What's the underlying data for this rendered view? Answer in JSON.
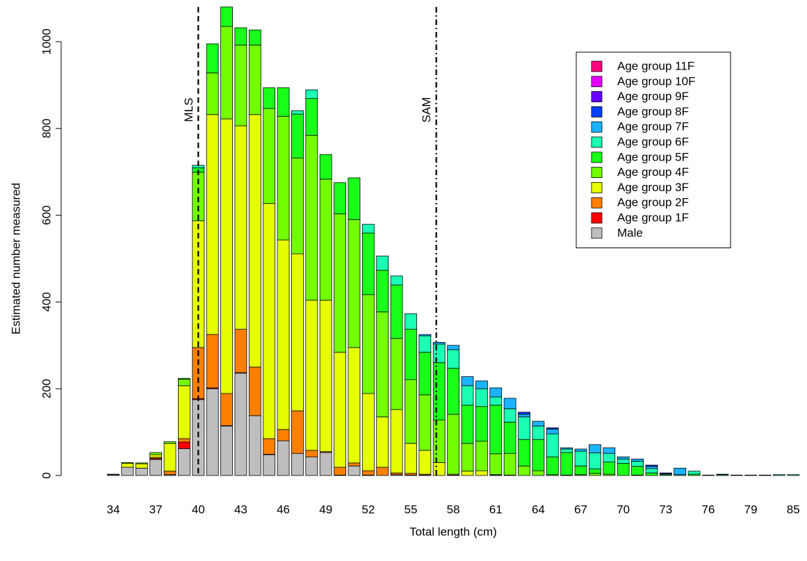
{
  "chart_data": {
    "type": "stacked_bar",
    "x_label": "Total length  (cm)",
    "y_label": "Estimated number measured",
    "categories": [
      "34",
      null,
      null,
      "37",
      null,
      null,
      "40",
      null,
      null,
      "43",
      null,
      null,
      "46",
      null,
      null,
      "49",
      null,
      null,
      "52",
      null,
      null,
      "55",
      null,
      null,
      "58",
      null,
      null,
      "61",
      null,
      null,
      "64",
      null,
      null,
      "67",
      null,
      null,
      "70",
      null,
      null,
      "73",
      null,
      null,
      "76",
      null,
      null,
      "79",
      null,
      null,
      "85"
    ],
    "ylim": [
      0,
      1080
    ],
    "yticks": [
      0,
      200,
      400,
      600,
      800,
      1000
    ],
    "grid": false,
    "legend": "topright",
    "annotations": [
      {
        "label": "MLS",
        "x": 40,
        "style": "dashed"
      },
      {
        "label": "SAM",
        "x": 56.8,
        "style": "dotdash"
      }
    ],
    "series": [
      {
        "name": "Male",
        "color": "#BEBEBE",
        "values": [
          2,
          19,
          17,
          37,
          2,
          62,
          175,
          200,
          114,
          236,
          138,
          48,
          80,
          51,
          43,
          53,
          1,
          22,
          1,
          0,
          2,
          1,
          1,
          0,
          1,
          0,
          0,
          1,
          0,
          0,
          0,
          0,
          0,
          0,
          0,
          0,
          0,
          0,
          0,
          0,
          0,
          0,
          0,
          0,
          0,
          0,
          0,
          0,
          0
        ]
      },
      {
        "name": "Age group 1F",
        "color": "#FF0000",
        "values": [
          0,
          0,
          0,
          2,
          0,
          15,
          2,
          2,
          1,
          1,
          0,
          1,
          0,
          0,
          0,
          0,
          0,
          0,
          0,
          0,
          0,
          0,
          0,
          0,
          0,
          0,
          0,
          0,
          0,
          0,
          0,
          0,
          0,
          0,
          0,
          0,
          0,
          0,
          0,
          0,
          0,
          0,
          0,
          0,
          0,
          0,
          0,
          0,
          0
        ]
      },
      {
        "name": "Age group 2F",
        "color": "#FF8000",
        "values": [
          0,
          0,
          0,
          3,
          8,
          8,
          118,
          123,
          74,
          100,
          112,
          36,
          26,
          98,
          15,
          2,
          18,
          7,
          10,
          19,
          4,
          4,
          2,
          0,
          0,
          0,
          0,
          0,
          0,
          0,
          0,
          0,
          0,
          0,
          0,
          0,
          0,
          0,
          0,
          0,
          0,
          0,
          0,
          0,
          0,
          0,
          0,
          0,
          0
        ]
      },
      {
        "name": "Age group 3F",
        "color": "#E6FF00",
        "values": [
          1,
          9,
          10,
          6,
          64,
          122,
          292,
          507,
          633,
          469,
          582,
          542,
          437,
          362,
          346,
          349,
          265,
          266,
          178,
          116,
          146,
          69,
          55,
          30,
          2,
          10,
          11,
          1,
          1,
          0,
          0,
          0,
          0,
          0,
          0,
          0,
          0,
          0,
          0,
          0,
          0,
          0,
          0,
          0,
          0,
          0,
          0,
          0,
          0
        ]
      },
      {
        "name": "Age group 4F",
        "color": "#73FF00",
        "values": [
          0,
          2,
          2,
          5,
          4,
          15,
          112,
          96,
          213,
          186,
          160,
          219,
          285,
          221,
          380,
          279,
          319,
          295,
          228,
          242,
          164,
          147,
          128,
          98,
          138,
          64,
          68,
          48,
          50,
          22,
          11,
          2,
          1,
          2,
          5,
          3,
          0,
          1,
          0,
          0,
          0,
          0,
          0,
          0,
          0,
          0,
          0,
          0,
          0
        ]
      },
      {
        "name": "Age group 5F",
        "color": "#1AFF1A",
        "values": [
          0,
          0,
          0,
          0,
          0,
          2,
          10,
          67,
          45,
          40,
          35,
          48,
          66,
          101,
          85,
          57,
          72,
          96,
          142,
          96,
          123,
          116,
          98,
          132,
          106,
          88,
          80,
          112,
          72,
          61,
          72,
          41,
          52,
          20,
          10,
          28,
          28,
          20,
          6,
          2,
          0,
          3,
          0,
          0,
          0,
          0,
          0,
          0,
          0
        ]
      },
      {
        "name": "Age group 6F",
        "color": "#1AFFB3",
        "values": [
          0,
          0,
          0,
          0,
          0,
          0,
          6,
          0,
          0,
          0,
          0,
          0,
          0,
          8,
          20,
          0,
          0,
          0,
          20,
          33,
          21,
          36,
          38,
          43,
          43,
          45,
          41,
          19,
          31,
          52,
          31,
          53,
          8,
          34,
          37,
          20,
          10,
          12,
          10,
          2,
          2,
          7,
          1,
          2,
          1,
          0,
          1,
          2,
          2
        ]
      },
      {
        "name": "Age group 7F",
        "color": "#1AB3FF",
        "values": [
          0,
          0,
          0,
          0,
          0,
          0,
          0,
          0,
          0,
          0,
          0,
          0,
          0,
          0,
          0,
          0,
          0,
          0,
          0,
          0,
          0,
          0,
          3,
          4,
          10,
          21,
          18,
          21,
          24,
          6,
          11,
          11,
          3,
          5,
          19,
          13,
          5,
          5,
          5,
          0,
          15,
          0,
          0,
          1,
          0,
          1,
          0,
          0,
          0
        ]
      },
      {
        "name": "Age group 8F",
        "color": "#0040FF",
        "values": [
          0,
          0,
          0,
          0,
          0,
          0,
          0,
          0,
          0,
          0,
          0,
          0,
          0,
          0,
          0,
          0,
          0,
          0,
          0,
          0,
          0,
          0,
          0,
          0,
          0,
          0,
          0,
          0,
          0,
          5,
          0,
          3,
          0,
          0,
          0,
          0,
          0,
          0,
          3,
          2,
          0,
          0,
          0,
          0,
          0,
          0,
          0,
          0,
          0
        ]
      },
      {
        "name": "Age group 9F",
        "color": "#6600FF",
        "values": [
          0,
          0,
          0,
          0,
          0,
          0,
          0,
          0,
          0,
          0,
          0,
          0,
          0,
          0,
          0,
          0,
          0,
          0,
          0,
          0,
          0,
          0,
          0,
          0,
          0,
          0,
          0,
          0,
          0,
          0,
          0,
          0,
          0,
          0,
          0,
          0,
          0,
          0,
          0,
          0,
          0,
          0,
          0,
          0,
          0,
          0,
          0,
          0,
          0
        ]
      },
      {
        "name": "Age group 10F",
        "color": "#E600FF",
        "values": [
          0,
          0,
          0,
          0,
          0,
          0,
          0,
          0,
          0,
          0,
          0,
          0,
          0,
          0,
          0,
          0,
          0,
          0,
          0,
          0,
          0,
          0,
          0,
          0,
          0,
          0,
          0,
          0,
          0,
          0,
          0,
          0,
          0,
          0,
          0,
          0,
          0,
          0,
          0,
          0,
          0,
          0,
          0,
          0,
          0,
          0,
          0,
          0,
          0
        ]
      },
      {
        "name": "Age group 11F",
        "color": "#FF0080",
        "values": [
          0,
          0,
          0,
          0,
          0,
          0,
          0,
          0,
          0,
          0,
          0,
          0,
          0,
          0,
          0,
          0,
          0,
          0,
          0,
          0,
          0,
          0,
          0,
          0,
          0,
          0,
          0,
          0,
          0,
          0,
          0,
          0,
          0,
          0,
          0,
          0,
          0,
          0,
          0,
          0,
          0,
          0,
          0,
          0,
          0,
          0,
          0,
          0,
          0
        ]
      }
    ]
  }
}
